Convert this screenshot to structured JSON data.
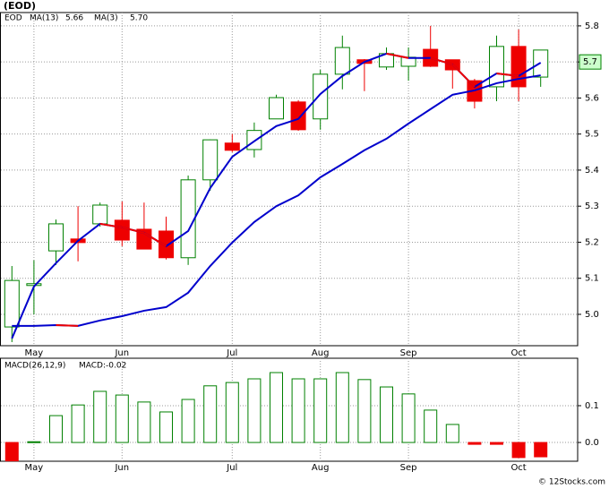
{
  "chart_data": [
    {
      "type": "candlestick",
      "title": "(EOD)",
      "name": "EOD",
      "categories": [
        null,
        "May",
        null,
        null,
        null,
        "Jun",
        null,
        null,
        null,
        null,
        "Jul",
        null,
        null,
        null,
        "Aug",
        null,
        null,
        null,
        "Sep",
        null,
        null,
        null,
        null,
        "Oct",
        null
      ],
      "open": [
        4.965,
        5.08,
        5.176,
        5.209,
        5.251,
        5.261,
        5.236,
        5.231,
        5.157,
        5.373,
        5.475,
        5.457,
        5.542,
        5.589,
        5.542,
        5.666,
        5.706,
        5.686,
        5.688,
        5.735,
        5.706,
        5.648,
        5.631,
        5.743,
        5.658
      ],
      "high": [
        5.134,
        5.15,
        5.263,
        5.3,
        5.31,
        5.313,
        5.31,
        5.271,
        5.385,
        5.485,
        5.5,
        5.532,
        5.609,
        5.594,
        5.678,
        5.773,
        5.708,
        5.74,
        5.74,
        5.8,
        5.706,
        5.653,
        5.773,
        5.79,
        5.733
      ],
      "low": [
        4.923,
        5.0,
        5.137,
        5.147,
        5.243,
        5.189,
        5.18,
        5.152,
        5.137,
        5.343,
        5.45,
        5.435,
        5.542,
        5.509,
        5.512,
        5.624,
        5.619,
        5.678,
        5.648,
        5.686,
        5.626,
        5.571,
        5.591,
        5.591,
        5.631
      ],
      "close": [
        5.094,
        5.085,
        5.251,
        5.199,
        5.303,
        5.206,
        5.181,
        5.157,
        5.373,
        5.484,
        5.455,
        5.51,
        5.601,
        5.512,
        5.666,
        5.74,
        5.696,
        5.723,
        5.713,
        5.688,
        5.678,
        5.591,
        5.743,
        5.631,
        5.733
      ],
      "up_color": "#008000",
      "down_color": "#ee0000",
      "series": [
        {
          "name": "MA(13)",
          "color": "#0000cc",
          "down_color": "#ee0000",
          "legend_value": {
            "value": 5.66,
            "label": "5.66"
          },
          "values": [
            4.968,
            4.968,
            4.97,
            4.968,
            4.983,
            4.995,
            5.01,
            5.02,
            5.06,
            5.134,
            5.199,
            5.256,
            5.3,
            5.33,
            5.38,
            5.417,
            5.455,
            5.487,
            5.529,
            5.569,
            5.609,
            5.621,
            5.641,
            5.653,
            5.663
          ]
        },
        {
          "name": "MA(3)",
          "color": "#0000cc",
          "down_color": "#ee0000",
          "legend_value": {
            "value": 5.7,
            "label": "5.70"
          },
          "values": [
            4.933,
            5.077,
            5.142,
            5.204,
            5.251,
            5.241,
            5.226,
            5.189,
            5.231,
            5.35,
            5.437,
            5.48,
            5.522,
            5.542,
            5.611,
            5.661,
            5.7,
            5.723,
            5.711,
            5.711,
            5.693,
            5.631,
            5.668,
            5.661,
            5.698
          ]
        }
      ],
      "last_price": 5.7,
      "ylim": [
        4.913,
        5.837
      ],
      "yticks": [
        {
          "value": 5,
          "label": "5.0"
        },
        5.1,
        5.2,
        5.3,
        5.4,
        5.5,
        5.6,
        5.7,
        5.8
      ],
      "grid": true
    },
    {
      "type": "bar",
      "title": "MACD(26,12,9)",
      "value_note": {
        "value": -0.02,
        "label": "MACD:-0.02"
      },
      "categories": [
        null,
        "May",
        null,
        null,
        null,
        "Jun",
        null,
        null,
        null,
        null,
        "Jul",
        null,
        null,
        null,
        "Aug",
        null,
        null,
        null,
        "Sep",
        null,
        null,
        null,
        null,
        "Oct",
        null
      ],
      "values": [
        -0.05,
        0.002,
        0.073,
        0.102,
        0.139,
        0.129,
        0.11,
        0.083,
        0.117,
        0.154,
        0.163,
        0.173,
        0.19,
        0.173,
        0.173,
        0.19,
        0.171,
        0.151,
        0.132,
        0.088,
        0.049,
        -0.005,
        -0.005,
        -0.041,
        -0.039
      ],
      "up_color": "#008000",
      "down_color": "#ee0000",
      "ylim": [
        -0.051,
        0.229
      ],
      "yticks": [
        {
          "value": 0,
          "label": "0.0"
        },
        0.1
      ],
      "grid": true
    }
  ],
  "source": "© 12Stocks.com"
}
